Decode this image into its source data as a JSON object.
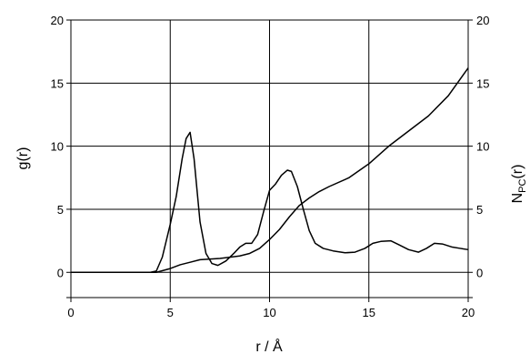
{
  "chart_data": {
    "type": "line",
    "xlabel": "r / Å",
    "ylabel_left": "g(r)",
    "ylabel_right_main": "N",
    "ylabel_right_sub": "PC",
    "ylabel_right_tail": "(r)",
    "xlim": [
      0,
      20
    ],
    "ylim": [
      -2,
      20
    ],
    "x_ticks": [
      0,
      5,
      10,
      15,
      20
    ],
    "y_ticks": [
      0,
      5,
      10,
      15,
      20
    ],
    "grid": true,
    "series": [
      {
        "id": "g_r",
        "axis": "left",
        "color": "#000000",
        "points": [
          [
            0,
            0
          ],
          [
            4.0,
            0
          ],
          [
            4.3,
            0.1
          ],
          [
            4.6,
            1.2
          ],
          [
            5.0,
            3.8
          ],
          [
            5.3,
            6.0
          ],
          [
            5.6,
            9.0
          ],
          [
            5.8,
            10.6
          ],
          [
            6.0,
            11.1
          ],
          [
            6.2,
            9.0
          ],
          [
            6.5,
            4.0
          ],
          [
            6.8,
            1.5
          ],
          [
            7.1,
            0.7
          ],
          [
            7.4,
            0.55
          ],
          [
            7.8,
            0.9
          ],
          [
            8.2,
            1.5
          ],
          [
            8.5,
            2.0
          ],
          [
            8.8,
            2.3
          ],
          [
            9.1,
            2.3
          ],
          [
            9.4,
            3.0
          ],
          [
            9.7,
            4.8
          ],
          [
            10.0,
            6.5
          ],
          [
            10.3,
            7.0
          ],
          [
            10.6,
            7.7
          ],
          [
            10.9,
            8.1
          ],
          [
            11.1,
            8.0
          ],
          [
            11.4,
            6.8
          ],
          [
            11.7,
            5.0
          ],
          [
            12.0,
            3.3
          ],
          [
            12.3,
            2.3
          ],
          [
            12.7,
            1.9
          ],
          [
            13.2,
            1.7
          ],
          [
            13.8,
            1.55
          ],
          [
            14.3,
            1.6
          ],
          [
            14.8,
            1.9
          ],
          [
            15.2,
            2.3
          ],
          [
            15.6,
            2.45
          ],
          [
            16.1,
            2.5
          ],
          [
            16.5,
            2.2
          ],
          [
            17.0,
            1.8
          ],
          [
            17.5,
            1.6
          ],
          [
            17.9,
            1.9
          ],
          [
            18.3,
            2.3
          ],
          [
            18.7,
            2.25
          ],
          [
            19.2,
            2.0
          ],
          [
            19.6,
            1.9
          ],
          [
            20.0,
            1.8
          ]
        ]
      },
      {
        "id": "N_pc",
        "axis": "right",
        "color": "#000000",
        "points": [
          [
            0,
            0
          ],
          [
            4.3,
            0
          ],
          [
            5.0,
            0.3
          ],
          [
            5.5,
            0.6
          ],
          [
            6.0,
            0.8
          ],
          [
            6.5,
            1.0
          ],
          [
            7.5,
            1.1
          ],
          [
            8.5,
            1.3
          ],
          [
            9.0,
            1.5
          ],
          [
            9.5,
            1.9
          ],
          [
            10.0,
            2.6
          ],
          [
            10.5,
            3.4
          ],
          [
            11.0,
            4.4
          ],
          [
            11.5,
            5.3
          ],
          [
            12.0,
            5.9
          ],
          [
            12.5,
            6.4
          ],
          [
            13.0,
            6.8
          ],
          [
            14.0,
            7.5
          ],
          [
            15.0,
            8.6
          ],
          [
            16.0,
            10.0
          ],
          [
            17.0,
            11.2
          ],
          [
            18.0,
            12.4
          ],
          [
            19.0,
            14.0
          ],
          [
            20.0,
            16.2
          ]
        ]
      }
    ]
  }
}
